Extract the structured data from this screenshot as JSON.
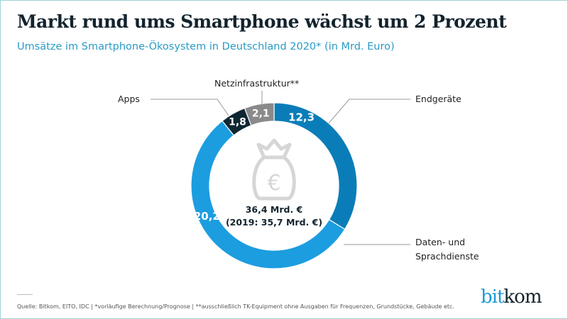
{
  "title": "Markt rund ums Smartphone wächst um 2 Prozent",
  "subtitle": "Umsätze im Smartphone-Ökosystem in Deutschland 2020* (in Mrd. Euro)",
  "chart_data": {
    "type": "pie",
    "donut": true,
    "title": "Markt rund ums Smartphone wächst um 2 Prozent",
    "subtitle": "Umsätze im Smartphone-Ökosystem in Deutschland 2020* (in Mrd. Euro)",
    "categories": [
      "Endgeräte",
      "Daten- und Sprachdienste",
      "Apps",
      "Netzinfrastruktur**"
    ],
    "values": [
      12.3,
      20.2,
      1.8,
      2.1
    ],
    "value_labels": [
      "12,3",
      "20,2",
      "1,8",
      "2,1"
    ],
    "colors": [
      "#0a7db8",
      "#1c9de0",
      "#0f2633",
      "#8a8a8a"
    ],
    "center_icon": "money-bag-euro-icon",
    "center_total": "36,4 Mrd. €",
    "center_previous": "(2019: 35,7 Mrd. €)"
  },
  "labels": {
    "endgeraete": "Endgeräte",
    "daten_line1": "Daten- und",
    "daten_line2": "Sprachdienste",
    "apps": "Apps",
    "netz": "Netzinfrastruktur**"
  },
  "footer": "Quelle: Bitkom, EITO, IDC | *vorläufige Berechnung/Prognose | **ausschließlich TK-Equipment ohne Ausgaben für Frequenzen, Grundstücke, Gebäude etc.",
  "logo": {
    "part1": "bit",
    "part2": "kom"
  }
}
